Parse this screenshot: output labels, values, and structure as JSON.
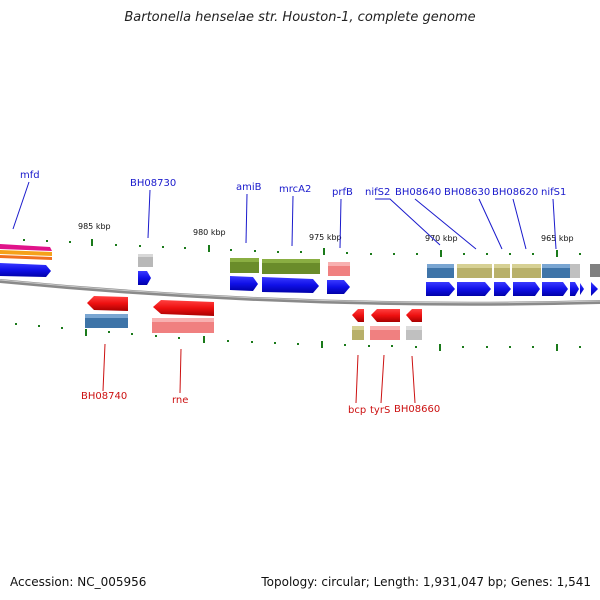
{
  "title": "Bartonella henselae str. Houston-1, complete genome",
  "footer": {
    "accession": "Accession: NC_005956",
    "topology": "Topology: circular; Length: 1,931,047 bp; Genes: 1,541"
  },
  "scale_labels": [
    "985 kbp",
    "980 kbp",
    "975 kbp",
    "970 kbp",
    "965 kbp"
  ],
  "top_labels": [
    "mfd",
    "BH08730",
    "amiB",
    "mrcA2",
    "prfB",
    "nifS2",
    "BH08640",
    "BH08630",
    "BH08620",
    "nifS1"
  ],
  "bottom_labels": [
    "BH08740",
    "rne",
    "bcp",
    "tyrS",
    "BH08660"
  ],
  "colors": {
    "label_top": "#1a1acc",
    "label_bottom": "#cc1111",
    "cds_forward": "#1111ee",
    "cds_reverse": "#ee1111",
    "backbone": "#8a8a8a",
    "tick": "#1a7a1a"
  }
}
